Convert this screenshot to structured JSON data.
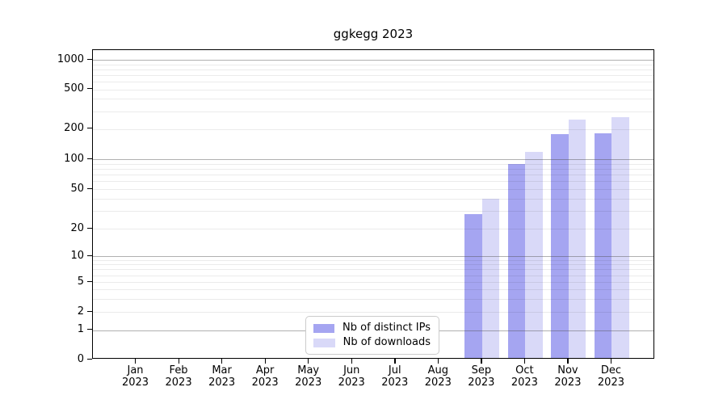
{
  "chart_data": {
    "type": "bar",
    "title": "ggkegg 2023",
    "categories": [
      "Jan 2023",
      "Feb 2023",
      "Mar 2023",
      "Apr 2023",
      "May 2023",
      "Jun 2023",
      "Jul 2023",
      "Aug 2023",
      "Sep 2023",
      "Oct 2023",
      "Nov 2023",
      "Dec 2023"
    ],
    "series": [
      {
        "name": "Nb of distinct IPs",
        "color": "#a5a5f1",
        "values": [
          0,
          0,
          0,
          0,
          0,
          0,
          0,
          0,
          28,
          89,
          178,
          182
        ]
      },
      {
        "name": "Nb of downloads",
        "color": "#d9d9f8",
        "values": [
          0,
          0,
          0,
          0,
          0,
          0,
          0,
          0,
          40,
          118,
          248,
          260
        ]
      }
    ],
    "xlabel": "",
    "ylabel": "",
    "yscale": "symlog",
    "yticks": [
      0,
      1,
      2,
      5,
      10,
      20,
      50,
      100,
      200,
      500,
      1000
    ],
    "ylim": [
      0,
      1300
    ],
    "grid": {
      "horizontal_major": true,
      "horizontal_minor": true,
      "vertical": false
    },
    "legend_position": "lower center"
  },
  "colors": {
    "bar_distinct_ips": "#a5a5f1",
    "bar_downloads": "#d9d9f8",
    "grid_major": "#b0b0b0",
    "grid_minor": "#ebebeb",
    "axis": "#000000",
    "legend_border": "#cccccc",
    "background": "#ffffff",
    "text": "#000000"
  }
}
